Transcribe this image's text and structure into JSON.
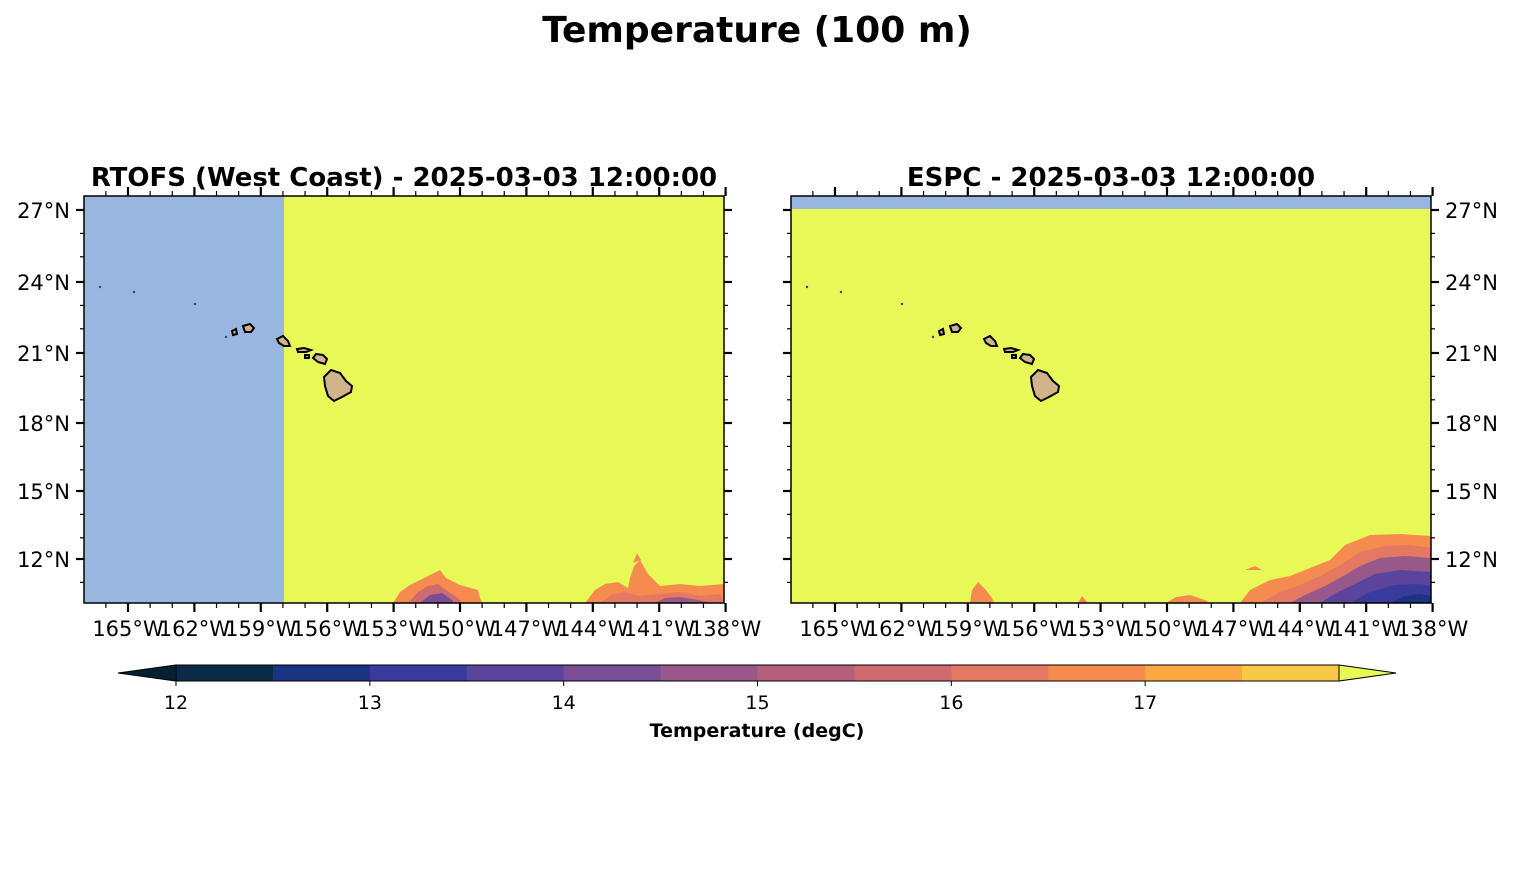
{
  "figure": {
    "title": "Temperature (100 m)"
  },
  "panels": [
    {
      "id": "rtofs",
      "title": "RTOFS (West Coast) - 2025-03-03 12:00:00",
      "lat_axis_side": "left",
      "lat_ticks": [
        "27°N",
        "24°N",
        "21°N",
        "18°N",
        "15°N",
        "12°N"
      ],
      "lon_ticks": [
        "165°W",
        "162°W",
        "159°W",
        "156°W",
        "153°W",
        "150°W",
        "147°W",
        "144°W",
        "141°W",
        "138°W"
      ],
      "note_fill": "model domain starts near 157.5°W; west of it shown in missing/land color"
    },
    {
      "id": "espc",
      "title": "ESPC - 2025-03-03 12:00:00",
      "lat_axis_side": "right",
      "lat_ticks": [
        "27°N",
        "24°N",
        "21°N",
        "18°N",
        "15°N",
        "12°N"
      ],
      "lon_ticks": [
        "165°W",
        "162°W",
        "159°W",
        "156°W",
        "153°W",
        "150°W",
        "147°W",
        "144°W",
        "141°W",
        "138°W"
      ]
    }
  ],
  "colorbar": {
    "label": "Temperature (degC)",
    "ticks": [
      "12",
      "13",
      "14",
      "15",
      "16",
      "17"
    ],
    "levels": [
      12.0,
      12.5,
      13.0,
      13.5,
      14.0,
      14.5,
      15.0,
      15.5,
      16.0,
      16.5,
      17.0,
      17.5
    ],
    "colors": [
      "#0a2a48",
      "#1b3380",
      "#3a3a9c",
      "#5b449c",
      "#7a4e94",
      "#98588a",
      "#b5607e",
      "#cf6b6e",
      "#e57862",
      "#f68b4f",
      "#fba842",
      "#f7c848"
    ],
    "under_color": "#062033",
    "over_color": "#e8f957"
  },
  "map_colors": {
    "ocean_warm": "#e8f957",
    "missing": "#98b6e0",
    "land": "#d2b48c",
    "coast": "#000000"
  }
}
